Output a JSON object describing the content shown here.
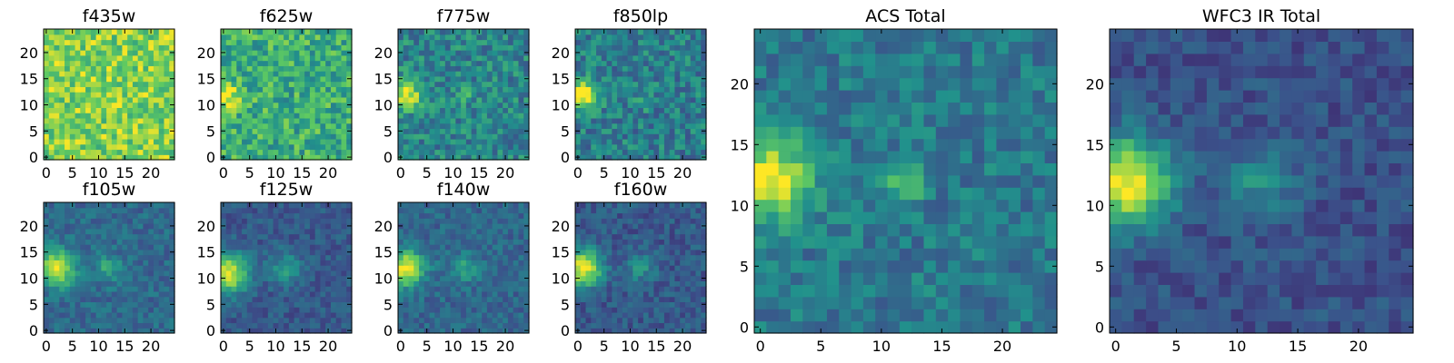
{
  "figure": {
    "colormap": "viridis",
    "colors": [
      "#440154",
      "#3b528b",
      "#21918c",
      "#5ec962",
      "#fde725"
    ]
  },
  "chart_data": [
    {
      "type": "heatmap",
      "title": "f435w",
      "size": 25,
      "xlim": [
        0,
        24
      ],
      "ylim": [
        0,
        24
      ],
      "xticks": [
        0,
        5,
        10,
        15,
        20
      ],
      "yticks": [
        0,
        5,
        10,
        15,
        20
      ],
      "grid": false,
      "features": {
        "background": 0.8,
        "noise": 0.2,
        "sources": []
      }
    },
    {
      "type": "heatmap",
      "title": "f625w",
      "size": 25,
      "xlim": [
        0,
        24
      ],
      "ylim": [
        0,
        24
      ],
      "xticks": [
        0,
        5,
        10,
        15,
        20
      ],
      "yticks": [
        0,
        5,
        10,
        15,
        20
      ],
      "grid": false,
      "features": {
        "background": 0.62,
        "noise": 0.2,
        "sources": [
          {
            "x": 1,
            "y": 12,
            "amp": 0.35,
            "sigma": 1.8
          }
        ]
      }
    },
    {
      "type": "heatmap",
      "title": "f775w",
      "size": 25,
      "xlim": [
        0,
        24
      ],
      "ylim": [
        0,
        24
      ],
      "xticks": [
        0,
        5,
        10,
        15,
        20
      ],
      "yticks": [
        0,
        5,
        10,
        15,
        20
      ],
      "grid": false,
      "features": {
        "background": 0.45,
        "noise": 0.17,
        "sources": [
          {
            "x": 1,
            "y": 12,
            "amp": 0.55,
            "sigma": 2.0
          },
          {
            "x": 12,
            "y": 12,
            "amp": 0.2,
            "sigma": 1.2
          }
        ]
      }
    },
    {
      "type": "heatmap",
      "title": "f850lp",
      "size": 25,
      "xlim": [
        0,
        24
      ],
      "ylim": [
        0,
        24
      ],
      "xticks": [
        0,
        5,
        10,
        15,
        20
      ],
      "yticks": [
        0,
        5,
        10,
        15,
        20
      ],
      "grid": false,
      "features": {
        "background": 0.42,
        "noise": 0.17,
        "sources": [
          {
            "x": 1,
            "y": 12,
            "amp": 0.6,
            "sigma": 2.0
          },
          {
            "x": 12,
            "y": 11,
            "amp": 0.15,
            "sigma": 1.2
          }
        ]
      }
    },
    {
      "type": "heatmap",
      "title": "f105w",
      "size": 25,
      "xlim": [
        0,
        24
      ],
      "ylim": [
        0,
        24
      ],
      "xticks": [
        0,
        5,
        10,
        15,
        20
      ],
      "yticks": [
        0,
        5,
        10,
        15,
        20
      ],
      "grid": false,
      "features": {
        "background": 0.34,
        "noise": 0.1,
        "sources": [
          {
            "x": 2,
            "y": 12,
            "amp": 0.62,
            "sigma": 2.4
          },
          {
            "x": 12,
            "y": 12,
            "amp": 0.25,
            "sigma": 1.8
          }
        ]
      }
    },
    {
      "type": "heatmap",
      "title": "f125w",
      "size": 25,
      "xlim": [
        0,
        24
      ],
      "ylim": [
        0,
        24
      ],
      "xticks": [
        0,
        5,
        10,
        15,
        20
      ],
      "yticks": [
        0,
        5,
        10,
        15,
        20
      ],
      "grid": false,
      "features": {
        "background": 0.28,
        "noise": 0.09,
        "sources": [
          {
            "x": 1,
            "y": 11,
            "amp": 0.68,
            "sigma": 2.6
          },
          {
            "x": 12,
            "y": 12,
            "amp": 0.25,
            "sigma": 2.2
          }
        ]
      }
    },
    {
      "type": "heatmap",
      "title": "f140w",
      "size": 25,
      "xlim": [
        0,
        24
      ],
      "ylim": [
        0,
        24
      ],
      "xticks": [
        0,
        5,
        10,
        15,
        20
      ],
      "yticks": [
        0,
        5,
        10,
        15,
        20
      ],
      "grid": false,
      "features": {
        "background": 0.33,
        "noise": 0.1,
        "sources": [
          {
            "x": 1,
            "y": 12,
            "amp": 0.64,
            "sigma": 2.4
          },
          {
            "x": 12,
            "y": 12,
            "amp": 0.22,
            "sigma": 2.0
          }
        ]
      }
    },
    {
      "type": "heatmap",
      "title": "f160w",
      "size": 25,
      "xlim": [
        0,
        24
      ],
      "ylim": [
        0,
        24
      ],
      "xticks": [
        0,
        5,
        10,
        15,
        20
      ],
      "yticks": [
        0,
        5,
        10,
        15,
        20
      ],
      "grid": false,
      "features": {
        "background": 0.28,
        "noise": 0.1,
        "sources": [
          {
            "x": 1,
            "y": 12,
            "amp": 0.7,
            "sigma": 2.5
          },
          {
            "x": 12,
            "y": 12,
            "amp": 0.22,
            "sigma": 2.0
          }
        ]
      }
    },
    {
      "type": "heatmap",
      "title": "ACS Total",
      "size": 25,
      "xlim": [
        0,
        24
      ],
      "ylim": [
        0,
        24
      ],
      "xticks": [
        0,
        5,
        10,
        15,
        20
      ],
      "yticks": [
        0,
        5,
        10,
        15,
        20
      ],
      "grid": false,
      "features": {
        "background": 0.4,
        "noise": 0.13,
        "sources": [
          {
            "x": 1,
            "y": 12,
            "amp": 0.62,
            "sigma": 2.2
          },
          {
            "x": 12,
            "y": 12,
            "amp": 0.28,
            "sigma": 1.2
          }
        ]
      }
    },
    {
      "type": "heatmap",
      "title": "WFC3 IR Total",
      "size": 25,
      "xlim": [
        0,
        24
      ],
      "ylim": [
        0,
        24
      ],
      "xticks": [
        0,
        5,
        10,
        15,
        20
      ],
      "yticks": [
        0,
        5,
        10,
        15,
        20
      ],
      "grid": false,
      "features": {
        "background": 0.25,
        "noise": 0.09,
        "sources": [
          {
            "x": 1,
            "y": 12,
            "amp": 0.75,
            "sigma": 2.5
          },
          {
            "x": 12,
            "y": 12,
            "amp": 0.25,
            "sigma": 2.0
          }
        ]
      }
    }
  ]
}
